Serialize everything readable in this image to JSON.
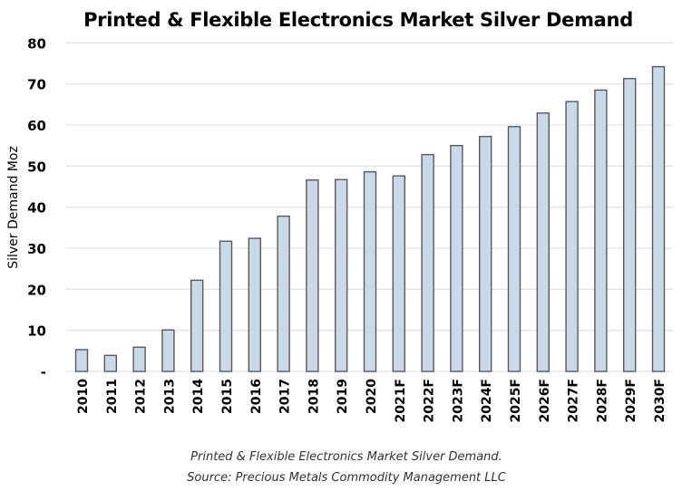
{
  "chart_data": {
    "type": "bar",
    "title": "Printed & Flexible Electronics Market  Silver Demand",
    "xlabel": "",
    "ylabel": "Silver Demand Moz",
    "ylim": [
      0,
      80
    ],
    "yticks": [
      0,
      10,
      20,
      30,
      40,
      50,
      60,
      70,
      80
    ],
    "ytick_labels": [
      "-",
      "10",
      "20",
      "30",
      "40",
      "50",
      "60",
      "70",
      "80"
    ],
    "grid": true,
    "legend": "none",
    "categories": [
      "2010",
      "2011",
      "2012",
      "2013",
      "2014",
      "2015",
      "2016",
      "2017",
      "2018",
      "2019",
      "2020",
      "2021F",
      "2022F",
      "2023F",
      "2024F",
      "2025F",
      "2026F",
      "2027F",
      "2028F",
      "2029F",
      "2030F"
    ],
    "series": [
      {
        "name": "Silver Demand (Moz)",
        "color": "#c9d9ea",
        "edge_color": "#555a60",
        "values": [
          5.3,
          3.9,
          5.9,
          10.1,
          22.2,
          31.7,
          32.4,
          37.8,
          46.6,
          46.7,
          48.6,
          47.6,
          52.8,
          55.0,
          57.2,
          59.6,
          62.9,
          65.7,
          68.5,
          71.3,
          74.2
        ]
      }
    ]
  },
  "captions": {
    "line1": "Printed & Flexible Electronics Market Silver Demand.",
    "line2": "Source: Precious Metals Commodity Management LLC"
  }
}
